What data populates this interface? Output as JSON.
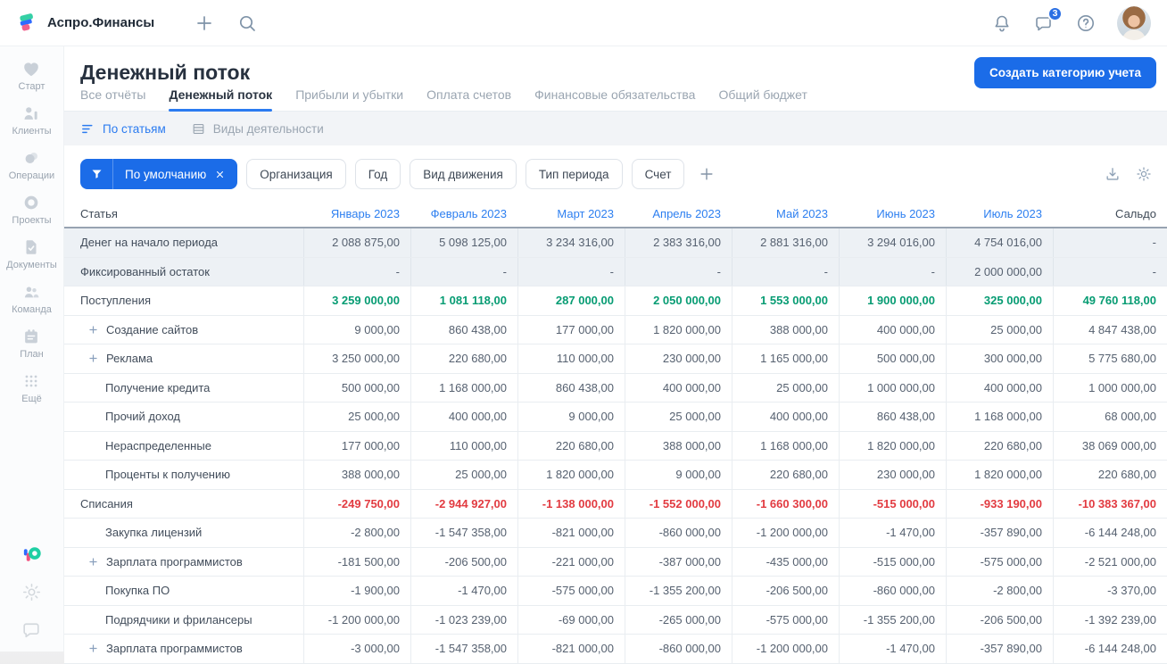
{
  "colors": {
    "accent": "#1b6ce8",
    "link": "#2d7ff0",
    "income": "#079c73",
    "expense": "#e23b41"
  },
  "topbar": {
    "brand": "Аспро.Финансы",
    "actions": [
      {
        "name": "notifications-button",
        "icon": "bell-icon",
        "badge": null
      },
      {
        "name": "messages-button",
        "icon": "chat-icon",
        "badge": "3"
      },
      {
        "name": "help-button",
        "icon": "help-icon",
        "badge": null
      }
    ]
  },
  "sidebar": {
    "items": [
      {
        "id": "start",
        "icon": "heart-icon",
        "label": "Старт"
      },
      {
        "id": "clients",
        "icon": "clients-icon",
        "label": "Клиенты"
      },
      {
        "id": "operations",
        "icon": "operations-icon",
        "label": "Операции"
      },
      {
        "id": "projects",
        "icon": "projects-icon",
        "label": "Проекты"
      },
      {
        "id": "documents",
        "icon": "documents-icon",
        "label": "Документы"
      },
      {
        "id": "team",
        "icon": "team-icon",
        "label": "Команда"
      },
      {
        "id": "plan",
        "icon": "plan-icon",
        "label": "План"
      },
      {
        "id": "more",
        "icon": "more-icon",
        "label": "Ещё"
      }
    ],
    "footer": [
      {
        "name": "aspro-app-icon",
        "icon": "aspro-color-icon"
      },
      {
        "name": "settings-button",
        "icon": "gear-icon"
      },
      {
        "name": "support-chat-button",
        "icon": "chat-icon"
      }
    ]
  },
  "page": {
    "title": "Денежный поток",
    "create_button": "Создать категорию учета"
  },
  "tabs": {
    "items": [
      {
        "label": "Все отчёты",
        "active": false
      },
      {
        "label": "Денежный поток",
        "active": true
      },
      {
        "label": "Прибыли и убытки",
        "active": false
      },
      {
        "label": "Оплата счетов",
        "active": false
      },
      {
        "label": "Финансовые обязательства",
        "active": false
      },
      {
        "label": "Общий бюджет",
        "active": false
      }
    ]
  },
  "views": {
    "items": [
      {
        "icon": "sort-lines-icon",
        "label": "По статьям",
        "active": true
      },
      {
        "icon": "stack-rows-icon",
        "label": "Виды деятельности",
        "active": false
      }
    ]
  },
  "filters": {
    "primary": {
      "icon": "funnel-icon",
      "label": "По умолчанию",
      "close_icon": "close-icon"
    },
    "chips": [
      "Организация",
      "Год",
      "Вид движения",
      "Тип периода",
      "Счет"
    ],
    "add_icon": "plus-icon",
    "actions": [
      {
        "name": "export-button",
        "icon": "download-icon"
      },
      {
        "name": "table-settings-button",
        "icon": "gear-icon"
      }
    ]
  },
  "table": {
    "columns": [
      {
        "label": "Статья",
        "link": false
      },
      {
        "label": "Январь 2023",
        "link": true
      },
      {
        "label": "Февраль 2023",
        "link": true
      },
      {
        "label": "Март 2023",
        "link": true
      },
      {
        "label": "Апрель 2023",
        "link": true
      },
      {
        "label": "Май 2023",
        "link": true
      },
      {
        "label": "Июнь 2023",
        "link": true
      },
      {
        "label": "Июль 2023",
        "link": true
      },
      {
        "label": "Сальдо",
        "link": false
      }
    ],
    "rows": [
      {
        "label": "Денег на начало периода",
        "type": "opening",
        "plus": false,
        "values": [
          "2 088 875,00",
          "5 098 125,00",
          "3 234 316,00",
          "2 383 316,00",
          "2 881 316,00",
          "3 294 016,00",
          "4 754 016,00",
          "-"
        ]
      },
      {
        "label": "Фиксированный остаток",
        "type": "opening",
        "plus": false,
        "values": [
          "-",
          "-",
          "-",
          "-",
          "-",
          "-",
          "2 000 000,00",
          "-"
        ]
      },
      {
        "label": "Поступления",
        "type": "income",
        "plus": false,
        "values": [
          "3 259 000,00",
          "1 081 118,00",
          "287 000,00",
          "2 050 000,00",
          "1 553 000,00",
          "1 900 000,00",
          "325 000,00",
          "49 760 118,00"
        ]
      },
      {
        "label": "Создание сайтов",
        "type": "item",
        "plus": true,
        "values": [
          "9 000,00",
          "860 438,00",
          "177 000,00",
          "1 820 000,00",
          "388 000,00",
          "400 000,00",
          "25 000,00",
          "4 847 438,00"
        ]
      },
      {
        "label": "Реклама",
        "type": "item",
        "plus": true,
        "values": [
          "3 250 000,00",
          "220 680,00",
          "110 000,00",
          "230 000,00",
          "1 165 000,00",
          "500 000,00",
          "300 000,00",
          "5 775 680,00"
        ]
      },
      {
        "label": "Получение кредита",
        "type": "item",
        "plus": false,
        "values": [
          "500 000,00",
          "1 168 000,00",
          "860 438,00",
          "400 000,00",
          "25 000,00",
          "1 000 000,00",
          "400 000,00",
          "1 000 000,00"
        ]
      },
      {
        "label": "Прочий доход",
        "type": "item",
        "plus": false,
        "values": [
          "25 000,00",
          "400 000,00",
          "9 000,00",
          "25 000,00",
          "400 000,00",
          "860 438,00",
          "1 168 000,00",
          "68 000,00"
        ]
      },
      {
        "label": "Нераспределенные",
        "type": "item",
        "plus": false,
        "values": [
          "177 000,00",
          "110 000,00",
          "220 680,00",
          "388 000,00",
          "1 168 000,00",
          "1 820 000,00",
          "220 680,00",
          "38 069 000,00"
        ]
      },
      {
        "label": "Проценты к получению",
        "type": "item",
        "plus": false,
        "values": [
          "388 000,00",
          "25 000,00",
          "1 820 000,00",
          "9 000,00",
          "220 680,00",
          "230 000,00",
          "1 820 000,00",
          "220 680,00"
        ]
      },
      {
        "label": "Списания",
        "type": "expense",
        "plus": false,
        "values": [
          "-249 750,00",
          "-2 944 927,00",
          "-1 138 000,00",
          "-1 552 000,00",
          "-1 660 300,00",
          "-515 000,00",
          "-933 190,00",
          "-10 383 367,00"
        ]
      },
      {
        "label": "Закупка лицензий",
        "type": "item",
        "plus": false,
        "values": [
          "-2 800,00",
          "-1 547 358,00",
          "-821 000,00",
          "-860 000,00",
          "-1 200 000,00",
          "-1 470,00",
          "-357 890,00",
          "-6 144 248,00"
        ]
      },
      {
        "label": "Зарплата программистов",
        "type": "item",
        "plus": true,
        "values": [
          "-181 500,00",
          "-206 500,00",
          "-221 000,00",
          "-387 000,00",
          "-435 000,00",
          "-515 000,00",
          "-575 000,00",
          "-2 521 000,00"
        ]
      },
      {
        "label": "Покупка ПО",
        "type": "item",
        "plus": false,
        "values": [
          "-1 900,00",
          "-1 470,00",
          "-575 000,00",
          "-1 355 200,00",
          "-206 500,00",
          "-860 000,00",
          "-2 800,00",
          "-3 370,00"
        ]
      },
      {
        "label": "Подрядчики и фрилансеры",
        "type": "item",
        "plus": false,
        "values": [
          "-1 200 000,00",
          "-1 023 239,00",
          "-69 000,00",
          "-265 000,00",
          "-575 000,00",
          "-1 355 200,00",
          "-206 500,00",
          "-1 392 239,00"
        ]
      },
      {
        "label": "Зарплата программистов",
        "type": "item",
        "plus": true,
        "values": [
          "-3 000,00",
          "-1 547 358,00",
          "-821 000,00",
          "-860 000,00",
          "-1 200 000,00",
          "-1 470,00",
          "-357 890,00",
          "-6 144 248,00"
        ]
      }
    ]
  }
}
